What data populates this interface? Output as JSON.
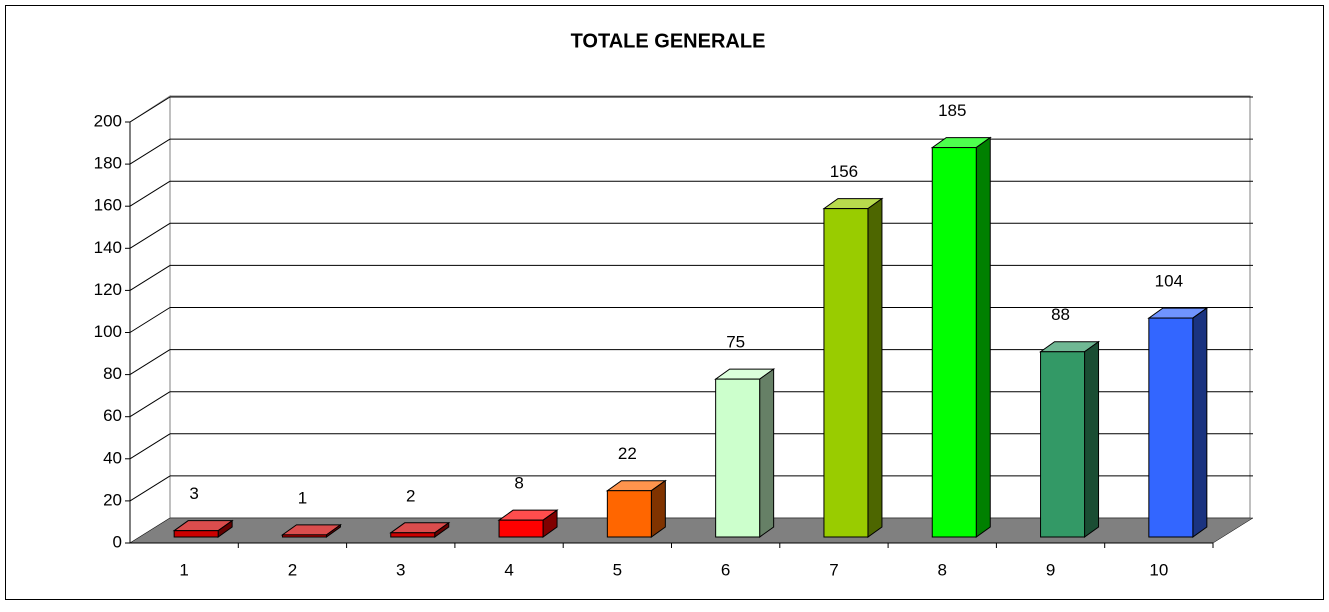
{
  "chart_data": {
    "type": "bar3d",
    "title": "TOTALE GENERALE",
    "categories": [
      "1",
      "2",
      "3",
      "4",
      "5",
      "6",
      "7",
      "8",
      "9",
      "10"
    ],
    "values": [
      3,
      1,
      2,
      8,
      22,
      75,
      156,
      185,
      88,
      104
    ],
    "colors": [
      "#cc0000",
      "#cc0000",
      "#cc0000",
      "#ff0000",
      "#ff6600",
      "#ccffcc",
      "#99cc00",
      "#00ff00",
      "#339966",
      "#3366ff"
    ],
    "ylim": [
      0,
      200
    ],
    "yticks": [
      0,
      20,
      40,
      60,
      80,
      100,
      120,
      140,
      160,
      180,
      200
    ],
    "grid": true
  }
}
